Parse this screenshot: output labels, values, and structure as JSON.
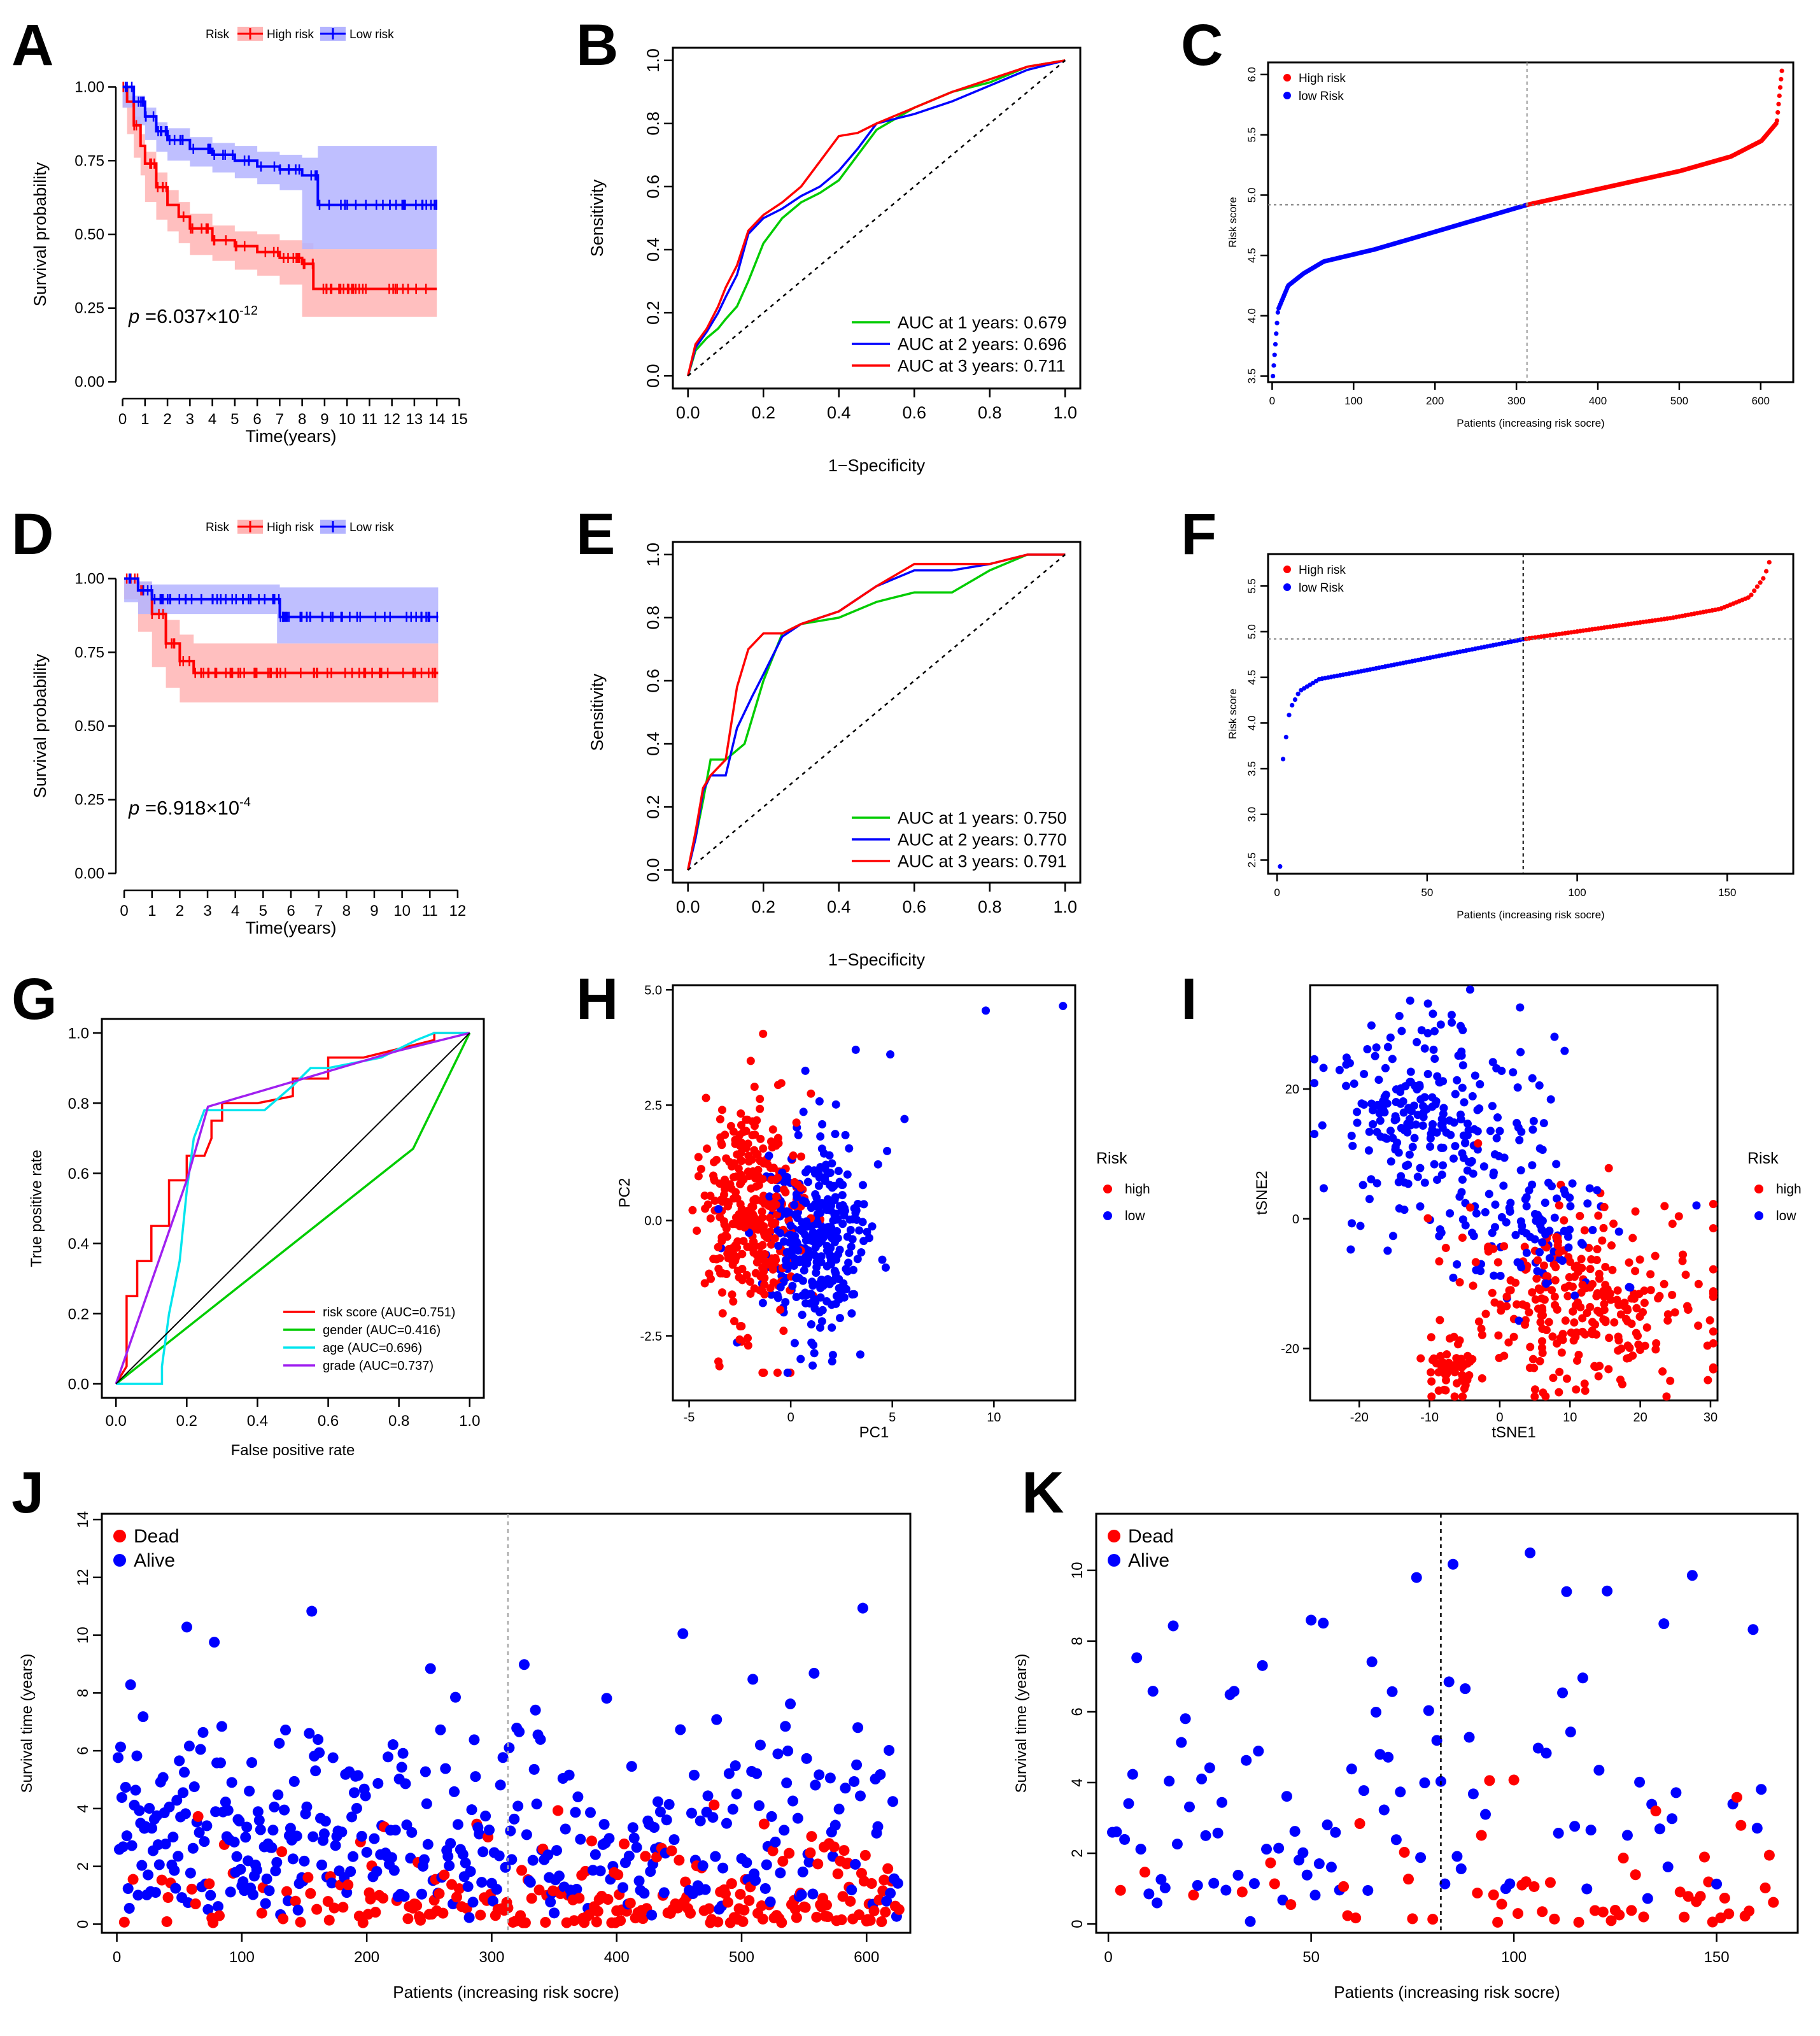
{
  "colors": {
    "high": "#ff0000",
    "low": "#0000ff",
    "green": "#00cc00",
    "cyan": "#00e5ee",
    "purple": "#a020f0",
    "high_band": "#ffb4b4",
    "low_band": "#b4b4ff"
  },
  "panels": {
    "A": "A",
    "B": "B",
    "C": "C",
    "D": "D",
    "E": "E",
    "F": "F",
    "G": "G",
    "H": "H",
    "I": "I",
    "J": "J",
    "K": "K"
  },
  "chart_data": [
    {
      "id": "A",
      "type": "line",
      "xlabel": "Time(years)",
      "ylabel": "Survival probability",
      "legend": {
        "title": "Risk",
        "entries": [
          "High risk",
          "Low risk"
        ]
      },
      "xticks": [
        0,
        1,
        2,
        3,
        4,
        5,
        6,
        7,
        8,
        9,
        10,
        11,
        12,
        13,
        14,
        15
      ],
      "yticks": [
        "0.00",
        "0.25",
        "0.50",
        "0.75",
        "1.00"
      ],
      "xlim": [
        0,
        15
      ],
      "ylim": [
        0,
        1
      ],
      "pvalue": {
        "prefix": "p",
        "text": " =6.037×10",
        "exp": "-12"
      },
      "series": [
        {
          "name": "High risk",
          "x": [
            0,
            0.2,
            0.5,
            0.8,
            1,
            1.5,
            2,
            2.5,
            3,
            4,
            5,
            6,
            7,
            8,
            8.5,
            14
          ],
          "y": [
            1,
            0.95,
            0.87,
            0.8,
            0.74,
            0.66,
            0.6,
            0.56,
            0.52,
            0.48,
            0.46,
            0.44,
            0.42,
            0.4,
            0.315,
            0.315
          ],
          "lower": [
            1,
            0.93,
            0.84,
            0.76,
            0.7,
            0.61,
            0.55,
            0.51,
            0.47,
            0.43,
            0.41,
            0.38,
            0.36,
            0.33,
            0.22,
            0.22
          ],
          "upper": [
            1,
            0.97,
            0.9,
            0.84,
            0.78,
            0.71,
            0.65,
            0.61,
            0.57,
            0.53,
            0.51,
            0.5,
            0.48,
            0.47,
            0.45,
            0.45
          ]
        },
        {
          "name": "Low risk",
          "x": [
            0,
            0.5,
            1,
            1.5,
            2,
            3,
            4,
            5,
            6,
            7,
            8,
            8.7,
            14
          ],
          "y": [
            1,
            0.95,
            0.9,
            0.85,
            0.82,
            0.79,
            0.77,
            0.75,
            0.73,
            0.72,
            0.7,
            0.6,
            0.6
          ],
          "lower": [
            1,
            0.93,
            0.87,
            0.82,
            0.78,
            0.75,
            0.73,
            0.71,
            0.69,
            0.67,
            0.65,
            0.45,
            0.45
          ],
          "upper": [
            1,
            0.97,
            0.93,
            0.88,
            0.86,
            0.83,
            0.81,
            0.8,
            0.78,
            0.77,
            0.76,
            0.8,
            0.8
          ]
        }
      ]
    },
    {
      "id": "B",
      "type": "line",
      "xlabel": "1−Specificity",
      "ylabel": "Sensitivity",
      "xticks": [
        "0.0",
        "0.2",
        "0.4",
        "0.6",
        "0.8",
        "1.0"
      ],
      "yticks": [
        "0.0",
        "0.2",
        "0.4",
        "0.6",
        "0.8",
        "1.0"
      ],
      "legend": [
        "AUC at 1 years: 0.679",
        "AUC at 2 years: 0.696",
        "AUC at 3 years: 0.711"
      ],
      "series": [
        {
          "name": "1 years",
          "x": [
            0,
            0.02,
            0.05,
            0.08,
            0.1,
            0.13,
            0.16,
            0.2,
            0.25,
            0.3,
            0.35,
            0.4,
            0.45,
            0.5,
            0.6,
            0.7,
            0.8,
            0.9,
            1
          ],
          "y": [
            0,
            0.08,
            0.12,
            0.15,
            0.18,
            0.22,
            0.3,
            0.42,
            0.5,
            0.55,
            0.58,
            0.62,
            0.7,
            0.78,
            0.85,
            0.9,
            0.93,
            0.98,
            1
          ]
        },
        {
          "name": "2 years",
          "x": [
            0,
            0.02,
            0.05,
            0.08,
            0.1,
            0.13,
            0.16,
            0.2,
            0.25,
            0.3,
            0.35,
            0.4,
            0.45,
            0.5,
            0.6,
            0.7,
            0.8,
            0.9,
            1
          ],
          "y": [
            0,
            0.09,
            0.14,
            0.2,
            0.25,
            0.32,
            0.45,
            0.5,
            0.53,
            0.57,
            0.6,
            0.65,
            0.72,
            0.8,
            0.83,
            0.87,
            0.92,
            0.97,
            1
          ]
        },
        {
          "name": "3 years",
          "x": [
            0,
            0.02,
            0.05,
            0.08,
            0.1,
            0.13,
            0.16,
            0.2,
            0.25,
            0.3,
            0.35,
            0.4,
            0.45,
            0.5,
            0.6,
            0.7,
            0.8,
            0.9,
            1
          ],
          "y": [
            0,
            0.1,
            0.15,
            0.22,
            0.28,
            0.35,
            0.46,
            0.51,
            0.55,
            0.6,
            0.68,
            0.76,
            0.77,
            0.8,
            0.85,
            0.9,
            0.94,
            0.98,
            1
          ]
        }
      ]
    },
    {
      "id": "C",
      "type": "scatter",
      "xlabel": "Patients (increasing risk socre)",
      "ylabel": "Risk score",
      "legend": [
        "High risk",
        "low Risk"
      ],
      "xticks": [
        0,
        100,
        200,
        300,
        400,
        500,
        600
      ],
      "yticks": [
        "3.5",
        "4.0",
        "4.5",
        "5.0",
        "5.5",
        "6.0"
      ],
      "xlim": [
        -5,
        640
      ],
      "ylim": [
        3.45,
        6.1
      ],
      "n": 626,
      "cutoff_index": 313,
      "cutoff_value": 4.92,
      "min": 3.5,
      "max": 6.03,
      "quantiles_x": [
        0,
        0.01,
        0.03,
        0.06,
        0.1,
        0.2,
        0.5,
        0.8,
        0.9,
        0.96,
        0.99,
        1
      ],
      "quantiles_y": [
        3.5,
        4.05,
        4.25,
        4.35,
        4.45,
        4.55,
        4.92,
        5.2,
        5.32,
        5.45,
        5.6,
        6.03
      ]
    },
    {
      "id": "D",
      "type": "line",
      "xlabel": "Time(years)",
      "ylabel": "Survival probability",
      "legend": {
        "title": "Risk",
        "entries": [
          "High risk",
          "Low risk"
        ]
      },
      "xticks": [
        0,
        1,
        2,
        3,
        4,
        5,
        6,
        7,
        8,
        9,
        10,
        11,
        12
      ],
      "yticks": [
        "0.00",
        "0.25",
        "0.50",
        "0.75",
        "1.00"
      ],
      "xlim": [
        0,
        12
      ],
      "ylim": [
        0,
        1
      ],
      "pvalue": {
        "prefix": "p",
        "text": " =6.918×10",
        "exp": "-4"
      },
      "series": [
        {
          "name": "High risk",
          "x": [
            0,
            0.5,
            1,
            1.5,
            2,
            2.5,
            11.3
          ],
          "y": [
            1,
            0.96,
            0.88,
            0.78,
            0.72,
            0.68,
            0.68
          ],
          "lower": [
            1,
            0.93,
            0.82,
            0.7,
            0.63,
            0.58,
            0.58
          ],
          "upper": [
            1,
            0.99,
            0.94,
            0.86,
            0.81,
            0.78,
            0.78
          ]
        },
        {
          "name": "Low risk",
          "x": [
            0,
            0.5,
            1,
            5.5,
            5.6,
            11.3
          ],
          "y": [
            1,
            0.96,
            0.93,
            0.93,
            0.87,
            0.87
          ],
          "lower": [
            1,
            0.92,
            0.88,
            0.88,
            0.78,
            0.78
          ],
          "upper": [
            1,
            0.99,
            0.98,
            0.98,
            0.97,
            0.97
          ]
        }
      ]
    },
    {
      "id": "E",
      "type": "line",
      "xlabel": "1−Specificity",
      "ylabel": "Sensitivity",
      "xticks": [
        "0.0",
        "0.2",
        "0.4",
        "0.6",
        "0.8",
        "1.0"
      ],
      "yticks": [
        "0.0",
        "0.2",
        "0.4",
        "0.6",
        "0.8",
        "1.0"
      ],
      "legend": [
        "AUC at 1 years: 0.750",
        "AUC at 2 years: 0.770",
        "AUC at 3 years: 0.791"
      ],
      "series": [
        {
          "name": "1 years",
          "x": [
            0,
            0.02,
            0.04,
            0.06,
            0.1,
            0.15,
            0.2,
            0.25,
            0.3,
            0.4,
            0.5,
            0.6,
            0.7,
            0.8,
            0.9,
            1
          ],
          "y": [
            0,
            0.1,
            0.22,
            0.35,
            0.35,
            0.4,
            0.6,
            0.75,
            0.78,
            0.8,
            0.85,
            0.88,
            0.88,
            0.95,
            1,
            1
          ]
        },
        {
          "name": "2 years",
          "x": [
            0,
            0.02,
            0.04,
            0.06,
            0.1,
            0.13,
            0.17,
            0.2,
            0.25,
            0.3,
            0.4,
            0.5,
            0.6,
            0.7,
            0.8,
            0.9,
            1
          ],
          "y": [
            0,
            0.1,
            0.25,
            0.3,
            0.3,
            0.45,
            0.55,
            0.62,
            0.74,
            0.78,
            0.82,
            0.9,
            0.95,
            0.95,
            0.97,
            1,
            1
          ]
        },
        {
          "name": "3 years",
          "x": [
            0,
            0.02,
            0.04,
            0.06,
            0.1,
            0.13,
            0.16,
            0.2,
            0.25,
            0.3,
            0.4,
            0.5,
            0.6,
            0.7,
            0.8,
            0.9,
            1
          ],
          "y": [
            0,
            0.12,
            0.26,
            0.3,
            0.35,
            0.58,
            0.7,
            0.75,
            0.75,
            0.78,
            0.82,
            0.9,
            0.97,
            0.97,
            0.97,
            1,
            1
          ]
        }
      ]
    },
    {
      "id": "F",
      "type": "scatter",
      "xlabel": "Patients (increasing risk socre)",
      "ylabel": "Risk score",
      "legend": [
        "High risk",
        "low Risk"
      ],
      "xticks": [
        0,
        50,
        100,
        150
      ],
      "yticks": [
        "2.5",
        "3.0",
        "3.5",
        "4.0",
        "4.5",
        "5.0",
        "5.5"
      ],
      "xlim": [
        -3,
        172
      ],
      "ylim": [
        2.35,
        5.85
      ],
      "n": 164,
      "cutoff_index": 82,
      "cutoff_value": 4.92,
      "min": 2.43,
      "max": 5.76,
      "quantiles_x": [
        0,
        0.006,
        0.02,
        0.04,
        0.08,
        0.15,
        0.5,
        0.8,
        0.9,
        0.96,
        0.99,
        1
      ],
      "quantiles_y": [
        2.43,
        3.6,
        4.15,
        4.35,
        4.48,
        4.55,
        4.92,
        5.15,
        5.25,
        5.38,
        5.6,
        5.76
      ]
    },
    {
      "id": "G",
      "type": "line",
      "xlabel": "False positive rate",
      "ylabel": "True positive rate",
      "xticks": [
        "0.0",
        "0.2",
        "0.4",
        "0.6",
        "0.8",
        "1.0"
      ],
      "yticks": [
        "0.0",
        "0.2",
        "0.4",
        "0.6",
        "0.8",
        "1.0"
      ],
      "legend": [
        "risk score (AUC=0.751)",
        "gender (AUC=0.416)",
        "age (AUC=0.696)",
        "grade (AUC=0.737)"
      ],
      "series": [
        {
          "name": "risk score",
          "x": [
            0,
            0.03,
            0.03,
            0.06,
            0.06,
            0.1,
            0.1,
            0.15,
            0.15,
            0.2,
            0.2,
            0.25,
            0.27,
            0.27,
            0.3,
            0.3,
            0.4,
            0.5,
            0.5,
            0.6,
            0.6,
            0.7,
            0.9,
            0.9,
            1
          ],
          "y": [
            0,
            0.05,
            0.25,
            0.25,
            0.35,
            0.35,
            0.45,
            0.45,
            0.58,
            0.58,
            0.65,
            0.65,
            0.7,
            0.75,
            0.75,
            0.8,
            0.8,
            0.82,
            0.87,
            0.87,
            0.93,
            0.93,
            0.98,
            1,
            1
          ]
        },
        {
          "name": "gender",
          "x": [
            0,
            0.84,
            1
          ],
          "y": [
            0,
            0.67,
            1
          ]
        },
        {
          "name": "age",
          "x": [
            0,
            0.13,
            0.13,
            0.15,
            0.18,
            0.2,
            0.22,
            0.25,
            0.3,
            0.35,
            0.42,
            0.5,
            0.55,
            0.6,
            0.75,
            0.85,
            0.9,
            1
          ],
          "y": [
            0,
            0,
            0.05,
            0.2,
            0.35,
            0.55,
            0.7,
            0.78,
            0.78,
            0.78,
            0.78,
            0.85,
            0.9,
            0.9,
            0.93,
            0.98,
            1,
            1
          ]
        },
        {
          "name": "grade",
          "x": [
            0,
            0.2,
            0.26,
            0.8,
            1
          ],
          "y": [
            0,
            0.58,
            0.79,
            0.95,
            1
          ]
        },
        {
          "name": "diagonal",
          "x": [
            0,
            1
          ],
          "y": [
            0,
            1
          ]
        }
      ]
    },
    {
      "id": "H",
      "type": "scatter",
      "xlabel": "PC1",
      "ylabel": "PC2",
      "xticks": [
        "-5",
        "0",
        "5",
        "10"
      ],
      "yticks": [
        "-2.5",
        "0.0",
        "2.5",
        "5.0"
      ],
      "legend": {
        "title": "Risk",
        "entries": [
          "high",
          "low"
        ]
      },
      "xlim": [
        -5.8,
        14
      ],
      "ylim": [
        -3.9,
        5.1
      ],
      "groups": [
        {
          "name": "high",
          "n": 330,
          "cx": -1.8,
          "cy": 0.1,
          "sx": 1.3,
          "sy": 1.25
        },
        {
          "name": "low",
          "n": 330,
          "cx": 1.3,
          "cy": -0.35,
          "sx": 1.35,
          "sy": 1.05
        }
      ],
      "outliers": [
        {
          "x": 9.6,
          "y": 4.55
        },
        {
          "x": 13.4,
          "y": 4.65
        },
        {
          "x": 5.6,
          "y": 2.2
        },
        {
          "x": 4.9,
          "y": 3.6
        },
        {
          "x": 3.2,
          "y": 3.7
        }
      ]
    },
    {
      "id": "I",
      "type": "scatter",
      "xlabel": "tSNE1",
      "ylabel": "tSNE2",
      "xticks": [
        "-20",
        "-10",
        "0",
        "10",
        "20",
        "30"
      ],
      "yticks": [
        "-20",
        "0",
        "20"
      ],
      "legend": {
        "title": "Risk",
        "entries": [
          "high",
          "low"
        ]
      },
      "xlim": [
        -27,
        31
      ],
      "ylim": [
        -28,
        36
      ],
      "groups": [
        {
          "name": "low",
          "n": 340,
          "clusters": [
            {
              "cx": -10,
              "cy": 14,
              "sx": 7,
              "sy": 8,
              "w": 0.75
            },
            {
              "cx": 5,
              "cy": -2,
              "sx": 6,
              "sy": 5,
              "w": 0.25
            }
          ]
        },
        {
          "name": "high",
          "n": 340,
          "clusters": [
            {
              "cx": 12,
              "cy": -12,
              "sx": 9,
              "sy": 7,
              "w": 0.85
            },
            {
              "cx": -7,
              "cy": -23,
              "sx": 2,
              "sy": 2,
              "w": 0.15
            }
          ]
        }
      ]
    },
    {
      "id": "J",
      "type": "scatter",
      "xlabel": "Patients (increasing risk socre)",
      "ylabel": "Survival time (years)",
      "legend": [
        "Dead",
        "Alive"
      ],
      "xticks": [
        0,
        100,
        200,
        300,
        400,
        500,
        600
      ],
      "yticks": [
        0,
        2,
        4,
        6,
        8,
        10,
        12,
        14
      ],
      "xlim": [
        -12,
        635
      ],
      "ylim": [
        -0.3,
        14.2
      ],
      "n": 626,
      "cutoff_index": 313
    },
    {
      "id": "K",
      "type": "scatter",
      "xlabel": "Patients (increasing risk socre)",
      "ylabel": "Survival time (years)",
      "legend": [
        "Dead",
        "Alive"
      ],
      "xticks": [
        0,
        50,
        100,
        150
      ],
      "yticks": [
        0,
        2,
        4,
        6,
        8,
        10
      ],
      "xlim": [
        -3,
        170
      ],
      "ylim": [
        -0.25,
        11.6
      ],
      "n": 164,
      "cutoff_index": 82
    }
  ]
}
